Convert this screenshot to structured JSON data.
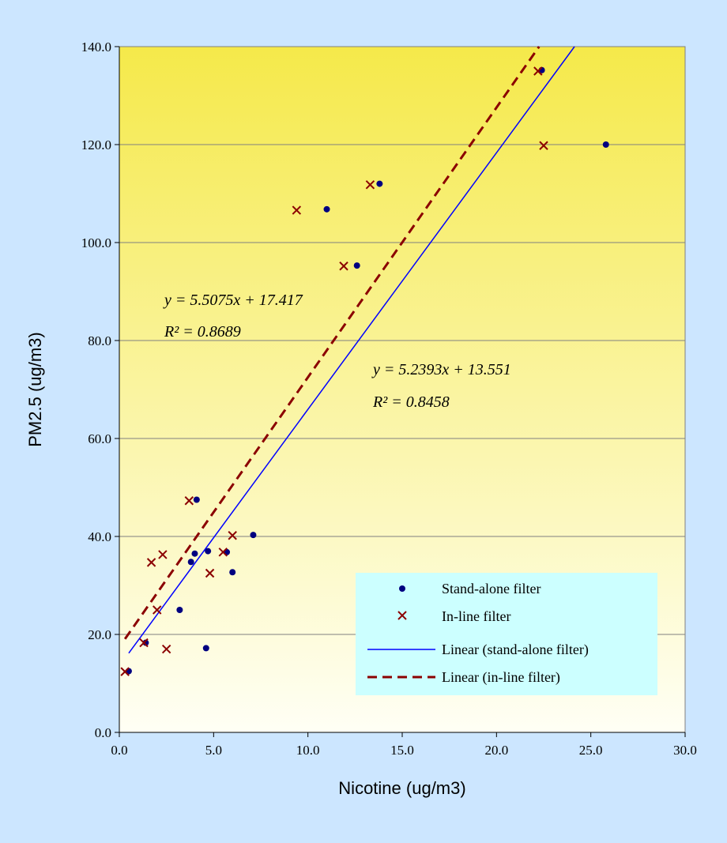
{
  "chart_data": {
    "type": "scatter",
    "title": "",
    "xlabel": "Nicotine (ug/m3)",
    "ylabel": "PM2.5 (ug/m3)",
    "xlim": [
      0,
      30
    ],
    "ylim": [
      0,
      140
    ],
    "x_ticks": [
      "0.0",
      "5.0",
      "10.0",
      "15.0",
      "20.0",
      "25.0",
      "30.0"
    ],
    "y_ticks": [
      "0.0",
      "20.0",
      "40.0",
      "60.0",
      "80.0",
      "100.0",
      "120.0",
      "140.0"
    ],
    "grid": "horizontal",
    "legend_position": "bottom-right",
    "series": [
      {
        "name": "Stand-alone filter",
        "marker": "dot",
        "color": "#000080",
        "points": [
          [
            0.5,
            12.5
          ],
          [
            1.4,
            18.3
          ],
          [
            3.2,
            25.0
          ],
          [
            3.8,
            34.8
          ],
          [
            4.0,
            36.5
          ],
          [
            4.1,
            47.5
          ],
          [
            4.7,
            37.0
          ],
          [
            4.6,
            17.2
          ],
          [
            5.7,
            36.8
          ],
          [
            6.0,
            32.7
          ],
          [
            7.1,
            40.3
          ],
          [
            11.0,
            106.8
          ],
          [
            12.6,
            95.3
          ],
          [
            13.8,
            112.0
          ],
          [
            22.4,
            135.2
          ],
          [
            25.8,
            120.0
          ]
        ]
      },
      {
        "name": "In-line filter",
        "marker": "cross",
        "color": "#8b0000",
        "points": [
          [
            0.3,
            12.4
          ],
          [
            1.3,
            18.3
          ],
          [
            1.7,
            34.7
          ],
          [
            2.0,
            25.0
          ],
          [
            2.3,
            36.3
          ],
          [
            2.5,
            17.0
          ],
          [
            3.7,
            47.3
          ],
          [
            4.8,
            32.5
          ],
          [
            5.5,
            36.8
          ],
          [
            6.0,
            40.2
          ],
          [
            9.4,
            106.6
          ],
          [
            11.9,
            95.2
          ],
          [
            13.3,
            111.8
          ],
          [
            22.2,
            135.0
          ],
          [
            22.5,
            119.8
          ]
        ]
      }
    ],
    "trendlines": [
      {
        "name": "Linear (stand-alone filter)",
        "slope": 5.2393,
        "intercept": 13.551,
        "x_range": [
          0.5,
          25.8
        ],
        "color": "#0000ff",
        "dash": "solid",
        "equation": "y = 5.2393x + 13.551",
        "r2": "R² = 0.8458"
      },
      {
        "name": "Linear (in-line filter)",
        "slope": 5.5075,
        "intercept": 17.417,
        "x_range": [
          0.3,
          22.5
        ],
        "color": "#8b0000",
        "dash": "dashed",
        "equation": "y = 5.5075x + 17.417",
        "r2": "R² = 0.8689"
      }
    ],
    "legend": [
      "Stand-alone filter",
      "In-line filter",
      "Linear (stand-alone filter)",
      "Linear (in-line filter)"
    ],
    "colors": {
      "page_background": "#cce6ff",
      "plot_gradient_top": "#f5e94a",
      "plot_gradient_bottom": "#fffff5",
      "legend_background": "#ccffff",
      "gridline": "#808080"
    }
  }
}
